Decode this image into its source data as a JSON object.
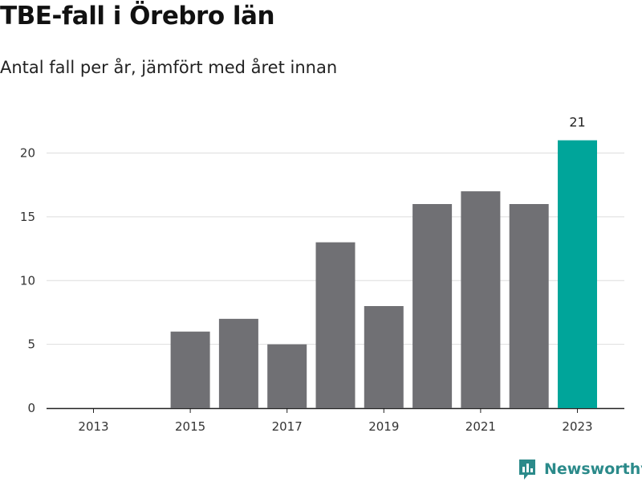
{
  "title": "TBE-fall i Örebro län",
  "subtitle": "Antal fall per år, jämfört med året innan",
  "brand": {
    "name": "Newsworthy",
    "icon": "bar-chart-logo-icon"
  },
  "colors": {
    "bar": "#707074",
    "highlight": "#00a59a",
    "grid": "#dedede",
    "axis": "#222222",
    "brand": "#2b8a8a"
  },
  "chart_data": {
    "type": "bar",
    "title": "TBE-fall i Örebro län",
    "subtitle": "Antal fall per år, jämfört med året innan",
    "xlabel": "",
    "ylabel": "",
    "categories": [
      "2013",
      "2014",
      "2015",
      "2016",
      "2017",
      "2018",
      "2019",
      "2020",
      "2021",
      "2022",
      "2023"
    ],
    "values": [
      0,
      0,
      6,
      7,
      5,
      13,
      8,
      16,
      17,
      16,
      21
    ],
    "highlight_index": 10,
    "highlight_label": "21",
    "x_tick_labels": [
      "2013",
      "2015",
      "2017",
      "2019",
      "2021",
      "2023"
    ],
    "y_ticks": [
      0,
      5,
      10,
      15,
      20
    ],
    "ylim": [
      0,
      22
    ],
    "grid": true,
    "legend": "none"
  }
}
